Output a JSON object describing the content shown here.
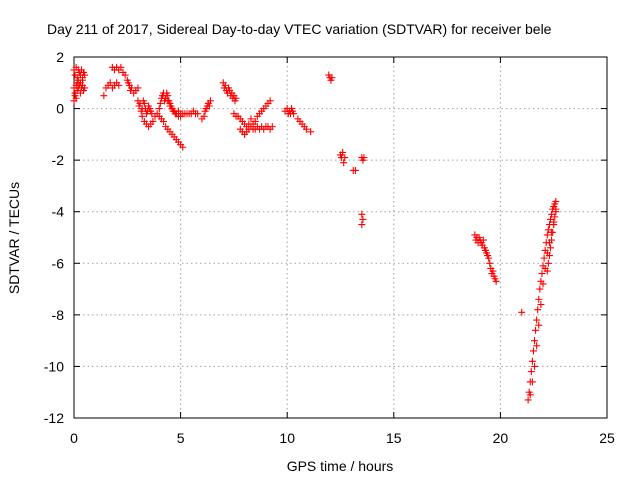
{
  "chart_data": {
    "type": "scatter",
    "title": "Day 211 of 2017, Sidereal Day-to-day VTEC variation (SDTVAR) for receiver bele",
    "xlabel": "GPS time / hours",
    "ylabel": "SDTVAR / TECUs",
    "xlim": [
      0,
      25
    ],
    "ylim": [
      -12,
      2
    ],
    "xticks": [
      0,
      5,
      10,
      15,
      20,
      25
    ],
    "yticks": [
      -12,
      -10,
      -8,
      -6,
      -4,
      -2,
      0,
      2
    ],
    "xtick_labels": [
      "0",
      "5",
      "10",
      "15",
      "20",
      "25"
    ],
    "ytick_labels": [
      "-12",
      "-10",
      "-8",
      "-6",
      "-4",
      "-2",
      "0",
      "2"
    ],
    "grid": true,
    "marker": "+",
    "series": [
      {
        "name": "SDTVAR",
        "color": "#ff0000",
        "points": [
          [
            0.0,
            1.5
          ],
          [
            0.05,
            1.3
          ],
          [
            0.1,
            1.6
          ],
          [
            0.15,
            1.2
          ],
          [
            0.2,
            1.5
          ],
          [
            0.25,
            1.4
          ],
          [
            0.3,
            1.3
          ],
          [
            0.35,
            1.5
          ],
          [
            0.4,
            1.2
          ],
          [
            0.45,
            1.4
          ],
          [
            0.5,
            1.3
          ],
          [
            0.0,
            0.8
          ],
          [
            0.05,
            0.6
          ],
          [
            0.1,
            0.9
          ],
          [
            0.15,
            0.7
          ],
          [
            0.2,
            0.8
          ],
          [
            0.25,
            0.9
          ],
          [
            0.3,
            1.0
          ],
          [
            0.35,
            0.8
          ],
          [
            0.4,
            0.9
          ],
          [
            0.45,
            0.7
          ],
          [
            0.5,
            0.8
          ],
          [
            0.0,
            0.3
          ],
          [
            0.05,
            0.5
          ],
          [
            0.1,
            0.4
          ],
          [
            0.15,
            1.0
          ],
          [
            0.2,
            1.1
          ],
          [
            0.3,
            0.6
          ],
          [
            0.4,
            1.1
          ],
          [
            1.4,
            0.5
          ],
          [
            1.5,
            0.8
          ],
          [
            1.6,
            0.9
          ],
          [
            1.7,
            1.0
          ],
          [
            1.8,
            0.8
          ],
          [
            1.9,
            0.9
          ],
          [
            2.0,
            1.0
          ],
          [
            2.1,
            0.9
          ],
          [
            1.8,
            1.6
          ],
          [
            1.9,
            1.5
          ],
          [
            2.0,
            1.6
          ],
          [
            2.1,
            1.5
          ],
          [
            2.2,
            1.6
          ],
          [
            2.3,
            1.4
          ],
          [
            2.4,
            1.3
          ],
          [
            2.5,
            1.1
          ],
          [
            2.55,
            1.0
          ],
          [
            2.6,
            0.9
          ],
          [
            2.65,
            0.7
          ],
          [
            2.7,
            0.8
          ],
          [
            2.8,
            0.6
          ],
          [
            2.9,
            0.7
          ],
          [
            3.0,
            0.8
          ],
          [
            3.0,
            0.3
          ],
          [
            3.05,
            0.1
          ],
          [
            3.1,
            0.2
          ],
          [
            3.15,
            -0.1
          ],
          [
            3.2,
            0.0
          ],
          [
            3.25,
            0.3
          ],
          [
            3.3,
            0.2
          ],
          [
            3.35,
            0.0
          ],
          [
            3.4,
            -0.2
          ],
          [
            3.45,
            -0.1
          ],
          [
            3.5,
            0.1
          ],
          [
            3.55,
            0.0
          ],
          [
            3.6,
            -0.1
          ],
          [
            3.65,
            -0.2
          ],
          [
            3.2,
            -0.3
          ],
          [
            3.3,
            -0.5
          ],
          [
            3.4,
            -0.6
          ],
          [
            3.5,
            -0.7
          ],
          [
            3.6,
            -0.6
          ],
          [
            3.7,
            -0.5
          ],
          [
            3.8,
            -0.3
          ],
          [
            3.9,
            -0.2
          ],
          [
            4.0,
            0.0
          ],
          [
            4.05,
            0.2
          ],
          [
            4.1,
            0.4
          ],
          [
            4.15,
            0.5
          ],
          [
            4.2,
            0.6
          ],
          [
            4.25,
            0.3
          ],
          [
            4.3,
            0.4
          ],
          [
            4.35,
            0.6
          ],
          [
            4.4,
            0.5
          ],
          [
            4.45,
            0.3
          ],
          [
            4.5,
            0.2
          ],
          [
            4.55,
            0.1
          ],
          [
            4.6,
            0.0
          ],
          [
            4.65,
            -0.1
          ],
          [
            4.7,
            -0.1
          ],
          [
            4.75,
            -0.2
          ],
          [
            4.8,
            -0.2
          ],
          [
            4.9,
            -0.3
          ],
          [
            5.0,
            -0.3
          ],
          [
            4.0,
            -0.3
          ],
          [
            4.1,
            -0.4
          ],
          [
            4.2,
            -0.5
          ],
          [
            4.3,
            -0.7
          ],
          [
            4.4,
            -0.8
          ],
          [
            4.5,
            -0.9
          ],
          [
            4.6,
            -1.0
          ],
          [
            4.7,
            -1.1
          ],
          [
            4.8,
            -1.2
          ],
          [
            4.9,
            -1.3
          ],
          [
            5.0,
            -1.4
          ],
          [
            5.1,
            -1.5
          ],
          [
            4.3,
            0.4
          ],
          [
            4.4,
            0.3
          ],
          [
            4.5,
            0.1
          ],
          [
            4.6,
            0.0
          ],
          [
            4.7,
            -0.1
          ],
          [
            4.8,
            -0.2
          ],
          [
            4.9,
            -0.1
          ],
          [
            5.0,
            -0.2
          ],
          [
            5.1,
            -0.2
          ],
          [
            5.2,
            -0.2
          ],
          [
            5.3,
            -0.2
          ],
          [
            5.4,
            -0.2
          ],
          [
            5.5,
            -0.2
          ],
          [
            5.6,
            -0.1
          ],
          [
            5.7,
            -0.2
          ],
          [
            5.8,
            -0.2
          ],
          [
            6.0,
            -0.4
          ],
          [
            6.1,
            -0.3
          ],
          [
            6.15,
            -0.1
          ],
          [
            6.2,
            0.0
          ],
          [
            6.25,
            0.1
          ],
          [
            6.3,
            0.2
          ],
          [
            6.35,
            0.1
          ],
          [
            6.4,
            0.3
          ],
          [
            7.0,
            1.0
          ],
          [
            7.05,
            0.8
          ],
          [
            7.1,
            0.9
          ],
          [
            7.15,
            0.7
          ],
          [
            7.2,
            0.6
          ],
          [
            7.25,
            0.8
          ],
          [
            7.3,
            0.7
          ],
          [
            7.35,
            0.5
          ],
          [
            7.4,
            0.6
          ],
          [
            7.45,
            0.4
          ],
          [
            7.5,
            0.5
          ],
          [
            7.55,
            0.3
          ],
          [
            7.6,
            0.4
          ],
          [
            7.5,
            -0.2
          ],
          [
            7.6,
            -0.3
          ],
          [
            7.7,
            -0.3
          ],
          [
            7.8,
            -0.4
          ],
          [
            7.9,
            -0.5
          ],
          [
            8.0,
            -0.6
          ],
          [
            8.1,
            -0.7
          ],
          [
            8.2,
            -0.6
          ],
          [
            8.3,
            -0.7
          ],
          [
            8.4,
            -0.8
          ],
          [
            7.8,
            -0.8
          ],
          [
            7.9,
            -0.9
          ],
          [
            8.0,
            -1.0
          ],
          [
            8.1,
            -0.9
          ],
          [
            8.2,
            -0.8
          ],
          [
            8.3,
            -0.4
          ],
          [
            8.4,
            -0.6
          ],
          [
            8.5,
            -0.8
          ],
          [
            8.6,
            -0.7
          ],
          [
            8.7,
            -0.8
          ],
          [
            8.8,
            -0.7
          ],
          [
            8.9,
            -0.8
          ],
          [
            9.0,
            -0.7
          ],
          [
            9.1,
            -0.7
          ],
          [
            9.2,
            -0.8
          ],
          [
            9.3,
            -0.7
          ],
          [
            8.5,
            -0.5
          ],
          [
            8.6,
            -0.3
          ],
          [
            8.7,
            -0.2
          ],
          [
            8.8,
            -0.1
          ],
          [
            8.9,
            0.0
          ],
          [
            9.0,
            0.1
          ],
          [
            9.1,
            0.2
          ],
          [
            9.2,
            0.3
          ],
          [
            9.9,
            -0.1
          ],
          [
            10.0,
            0.0
          ],
          [
            10.05,
            -0.2
          ],
          [
            10.1,
            -0.1
          ],
          [
            10.15,
            -0.2
          ],
          [
            10.2,
            0.0
          ],
          [
            10.25,
            -0.1
          ],
          [
            10.3,
            -0.2
          ],
          [
            10.5,
            -0.4
          ],
          [
            10.6,
            -0.5
          ],
          [
            10.7,
            -0.6
          ],
          [
            10.8,
            -0.7
          ],
          [
            10.9,
            -0.8
          ],
          [
            11.1,
            -0.9
          ],
          [
            11.95,
            1.3
          ],
          [
            12.0,
            1.2
          ],
          [
            12.05,
            1.1
          ],
          [
            12.1,
            1.2
          ],
          [
            12.5,
            -1.8
          ],
          [
            12.55,
            -1.9
          ],
          [
            12.6,
            -1.7
          ],
          [
            12.65,
            -2.1
          ],
          [
            12.7,
            -1.9
          ],
          [
            13.1,
            -2.4
          ],
          [
            13.2,
            -2.4
          ],
          [
            13.5,
            -1.9
          ],
          [
            13.55,
            -2.0
          ],
          [
            13.6,
            -1.9
          ],
          [
            13.5,
            -4.1
          ],
          [
            13.55,
            -4.3
          ],
          [
            13.5,
            -4.5
          ],
          [
            18.8,
            -4.9
          ],
          [
            18.85,
            -5.1
          ],
          [
            18.9,
            -5.0
          ],
          [
            18.95,
            -5.2
          ],
          [
            19.0,
            -5.0
          ],
          [
            19.05,
            -5.1
          ],
          [
            19.1,
            -5.2
          ],
          [
            19.15,
            -5.3
          ],
          [
            19.2,
            -5.1
          ],
          [
            19.25,
            -5.4
          ],
          [
            19.3,
            -5.5
          ],
          [
            19.35,
            -5.6
          ],
          [
            19.4,
            -5.7
          ],
          [
            19.45,
            -5.8
          ],
          [
            19.5,
            -6.0
          ],
          [
            19.55,
            -6.2
          ],
          [
            19.6,
            -6.4
          ],
          [
            19.65,
            -6.3
          ],
          [
            19.7,
            -6.5
          ],
          [
            19.75,
            -6.6
          ],
          [
            19.8,
            -6.7
          ],
          [
            21.0,
            -7.9
          ],
          [
            21.3,
            -11.3
          ],
          [
            21.35,
            -11.0
          ],
          [
            21.4,
            -10.6
          ],
          [
            21.45,
            -10.2
          ],
          [
            21.5,
            -9.8
          ],
          [
            21.55,
            -9.4
          ],
          [
            21.6,
            -9.0
          ],
          [
            21.65,
            -8.6
          ],
          [
            21.7,
            -8.2
          ],
          [
            21.75,
            -7.8
          ],
          [
            21.8,
            -7.4
          ],
          [
            21.85,
            -7.0
          ],
          [
            21.9,
            -6.7
          ],
          [
            21.95,
            -6.4
          ],
          [
            22.0,
            -6.1
          ],
          [
            22.05,
            -5.8
          ],
          [
            22.1,
            -5.5
          ],
          [
            22.15,
            -5.2
          ],
          [
            22.2,
            -4.9
          ],
          [
            22.25,
            -4.7
          ],
          [
            22.3,
            -4.5
          ],
          [
            22.35,
            -4.3
          ],
          [
            22.4,
            -4.1
          ],
          [
            22.45,
            -3.9
          ],
          [
            22.5,
            -3.8
          ],
          [
            22.55,
            -3.7
          ],
          [
            22.6,
            -3.6
          ],
          [
            21.4,
            -11.1
          ],
          [
            21.5,
            -10.6
          ],
          [
            21.6,
            -10.0
          ],
          [
            21.7,
            -9.2
          ],
          [
            21.8,
            -8.4
          ],
          [
            21.9,
            -7.6
          ],
          [
            22.0,
            -6.8
          ],
          [
            22.1,
            -6.2
          ],
          [
            22.2,
            -5.6
          ],
          [
            22.3,
            -5.2
          ],
          [
            22.4,
            -4.8
          ],
          [
            22.5,
            -4.4
          ],
          [
            22.6,
            -4.0
          ],
          [
            22.2,
            -6.3
          ],
          [
            22.25,
            -6.0
          ],
          [
            22.3,
            -5.7
          ],
          [
            22.35,
            -5.4
          ],
          [
            22.4,
            -5.1
          ],
          [
            22.45,
            -4.8
          ],
          [
            22.5,
            -4.5
          ],
          [
            22.55,
            -4.2
          ],
          [
            22.6,
            -3.9
          ]
        ]
      }
    ]
  }
}
